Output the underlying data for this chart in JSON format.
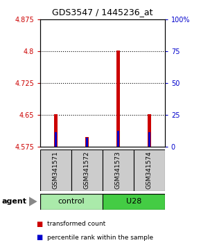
{
  "title": "GDS3547 / 1445236_at",
  "samples": [
    "GSM341571",
    "GSM341572",
    "GSM341573",
    "GSM341574"
  ],
  "red_values": [
    4.652,
    4.598,
    4.802,
    4.652
  ],
  "blue_values": [
    4.61,
    4.597,
    4.613,
    4.61
  ],
  "baseline": 4.575,
  "ylim": [
    4.575,
    4.875
  ],
  "yticks_left": [
    4.575,
    4.65,
    4.725,
    4.8,
    4.875
  ],
  "yticks_right": [
    0,
    25,
    50,
    75,
    100
  ],
  "yticks_right_vals": [
    4.575,
    4.65,
    4.725,
    4.8,
    4.875
  ],
  "groups": [
    {
      "label": "control",
      "samples": [
        0,
        1
      ],
      "color": "#AAEAAA"
    },
    {
      "label": "U28",
      "samples": [
        2,
        3
      ],
      "color": "#44CC44"
    }
  ],
  "red_bar_width": 0.12,
  "blue_bar_width": 0.08,
  "red_color": "#CC0000",
  "blue_color": "#0000CC",
  "left_tick_color": "#CC0000",
  "right_tick_color": "#0000CC",
  "sample_box_color": "#CCCCCC",
  "legend_items": [
    "transformed count",
    "percentile rank within the sample"
  ],
  "legend_colors": [
    "#CC0000",
    "#0000CC"
  ],
  "grid_ticks": [
    4.65,
    4.725,
    4.8
  ]
}
